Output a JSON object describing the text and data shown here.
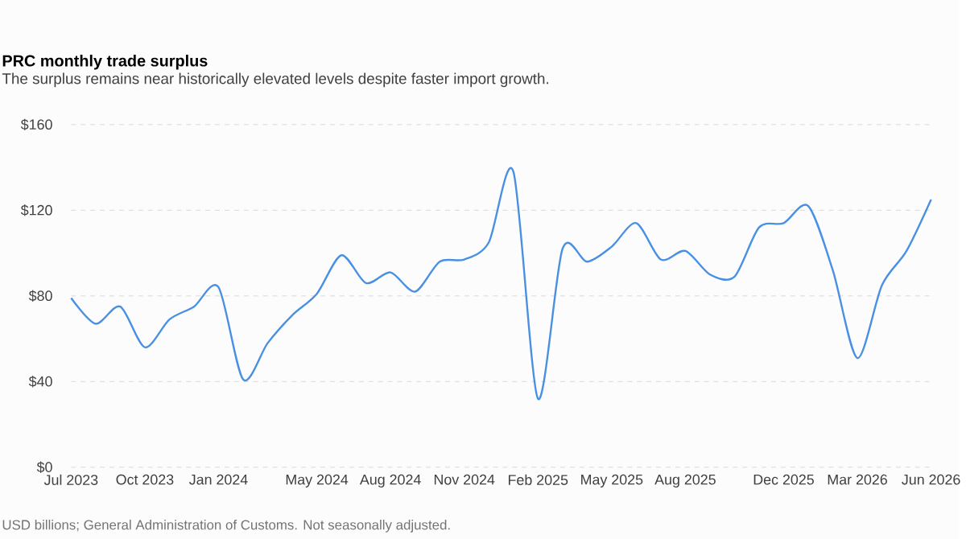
{
  "chart_data": {
    "type": "line",
    "title": "PRC monthly trade surplus",
    "subtitle": "The surplus remains near historically elevated levels despite faster import growth.",
    "annotations": [
      "USD billions; General Administration of Customs. Not seasonally adjusted."
    ],
    "x": [
      "2023-07",
      "2023-08",
      "2023-09",
      "2023-10",
      "2023-11",
      "2023-12",
      "2024-01",
      "2024-02",
      "2024-03",
      "2024-04",
      "2024-05",
      "2024-06",
      "2024-07",
      "2024-08",
      "2024-09",
      "2024-10",
      "2024-11",
      "2024-12",
      "2025-01",
      "2025-02",
      "2025-03",
      "2025-04",
      "2025-05",
      "2025-06",
      "2025-07",
      "2025-08",
      "2025-09",
      "2025-10",
      "2025-11",
      "2025-12",
      "2026-01",
      "2026-02",
      "2026-03",
      "2026-04",
      "2026-05",
      "2026-06"
    ],
    "values": [
      79,
      67,
      75,
      56,
      69,
      75,
      84,
      41,
      58,
      71,
      81,
      99,
      86,
      91,
      82,
      96,
      97,
      105,
      138,
      32,
      102,
      96,
      103,
      114,
      97,
      101,
      90,
      89,
      112,
      114,
      122,
      92,
      51,
      85,
      101,
      125
    ],
    "color": "#4a90e2",
    "marker": "none",
    "line_style": "solid",
    "grid": "y",
    "xlim": [
      "2023-07",
      "2026-06"
    ],
    "ylim": [
      0,
      160
    ],
    "xticks": [
      {
        "value": "2023-07",
        "label": "Jul 2023"
      },
      {
        "value": "2023-10",
        "label": "Oct 2023"
      },
      {
        "value": "2024-01",
        "label": "Jan 2024"
      },
      {
        "value": "2024-05",
        "label": "May 2024"
      },
      {
        "value": "2024-08",
        "label": "Aug 2024"
      },
      {
        "value": "2024-11",
        "label": "Nov 2024"
      },
      {
        "value": "2025-02",
        "label": "Feb 2025"
      },
      {
        "value": "2025-05",
        "label": "May 2025"
      },
      {
        "value": "2025-08",
        "label": "Aug 2025"
      },
      {
        "value": "2025-12",
        "label": "Dec 2025"
      },
      {
        "value": "2026-03",
        "label": "Mar 2026"
      },
      {
        "value": "2026-06",
        "label": "Jun 2026"
      }
    ],
    "yticks": [
      {
        "value": 0,
        "label": "$0"
      },
      {
        "value": 40,
        "label": "$40"
      },
      {
        "value": 80,
        "label": "$80"
      },
      {
        "value": 120,
        "label": "$120"
      },
      {
        "value": 160,
        "label": "$160"
      }
    ]
  }
}
